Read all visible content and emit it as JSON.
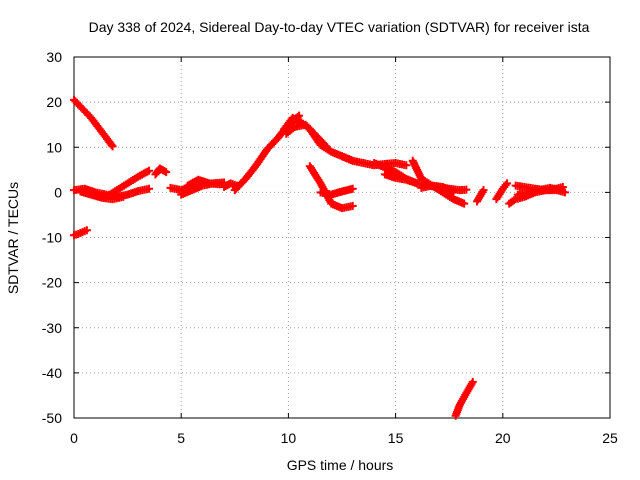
{
  "chart_data": {
    "type": "scatter",
    "title": "Day 338 of 2024, Sidereal Day-to-day VTEC variation (SDTVAR) for receiver ista",
    "xlabel": "GPS time / hours",
    "ylabel": "SDTVAR / TECUs",
    "xlim": [
      0,
      25
    ],
    "ylim": [
      -50,
      30
    ],
    "xticks": [
      0,
      5,
      10,
      15,
      20,
      25
    ],
    "yticks": [
      -50,
      -40,
      -30,
      -20,
      -10,
      0,
      10,
      20,
      30
    ],
    "xtick_labels": [
      "0",
      "5",
      "10",
      "15",
      "20",
      "25"
    ],
    "ytick_labels": [
      "-50",
      "-40",
      "-30",
      "-20",
      "-10",
      "0",
      "10",
      "20",
      "30"
    ],
    "grid": true,
    "marker": "plus",
    "series": [
      {
        "name": "SDTVAR",
        "color": "#ff0000",
        "tracks": [
          {
            "x": [
              0.0,
              0.4,
              0.8,
              1.2,
              1.6,
              1.8
            ],
            "y": [
              20.5,
              18.5,
              16.5,
              14.0,
              11.5,
              10.2
            ]
          },
          {
            "x": [
              0.0,
              0.2,
              0.4,
              0.6
            ],
            "y": [
              -9.5,
              -9.2,
              -8.8,
              -8.4
            ]
          },
          {
            "x": [
              0.0,
              0.5,
              1.0,
              1.5,
              2.0,
              2.5,
              3.0,
              3.5
            ],
            "y": [
              0.5,
              0.8,
              0.0,
              -0.5,
              -1.0,
              -0.5,
              0.3,
              0.8
            ]
          },
          {
            "x": [
              0.3,
              0.8,
              1.3,
              1.8,
              2.3
            ],
            "y": [
              0.2,
              -0.5,
              -1.2,
              -1.5,
              -1.0
            ]
          },
          {
            "x": [
              1.0,
              1.5,
              2.0,
              2.5,
              3.0,
              3.5
            ],
            "y": [
              -0.5,
              -1.0,
              0.5,
              2.0,
              3.5,
              4.8
            ]
          },
          {
            "x": [
              3.8,
              4.0,
              4.3
            ],
            "y": [
              4.0,
              5.3,
              4.5
            ]
          },
          {
            "x": [
              4.5,
              5.0,
              5.5
            ],
            "y": [
              1.0,
              0.5,
              1.2
            ]
          },
          {
            "x": [
              5.0,
              5.5,
              6.0,
              6.5,
              7.0
            ],
            "y": [
              -0.5,
              0.5,
              1.5,
              2.0,
              2.2
            ]
          },
          {
            "x": [
              5.3,
              5.8,
              6.3,
              6.8
            ],
            "y": [
              1.5,
              2.8,
              2.0,
              1.8
            ]
          },
          {
            "x": [
              7.0,
              7.3,
              7.6
            ],
            "y": [
              1.2,
              2.0,
              1.5
            ]
          },
          {
            "x": [
              7.5,
              8.0,
              8.5,
              9.0,
              9.5,
              10.0,
              10.5
            ],
            "y": [
              0.5,
              3.0,
              6.0,
              9.5,
              12.0,
              15.0,
              17.0
            ]
          },
          {
            "x": [
              9.8,
              10.2,
              10.6,
              11.0,
              11.5,
              12.0,
              12.5,
              13.0
            ],
            "y": [
              14.0,
              16.5,
              15.5,
              14.0,
              10.5,
              9.0,
              8.0,
              7.0
            ]
          },
          {
            "x": [
              9.9,
              10.3,
              10.8,
              11.3,
              11.8
            ],
            "y": [
              13.0,
              14.5,
              15.0,
              12.5,
              10.0
            ]
          },
          {
            "x": [
              11.0,
              11.5,
              12.0,
              12.5,
              13.0
            ],
            "y": [
              5.8,
              2.0,
              -2.5,
              -3.5,
              -3.0
            ]
          },
          {
            "x": [
              11.5,
              12.0,
              12.5,
              13.0
            ],
            "y": [
              0.0,
              -0.5,
              0.2,
              0.8
            ]
          },
          {
            "x": [
              12.5,
              13.0,
              13.5,
              14.0,
              14.5,
              15.0,
              15.5
            ],
            "y": [
              8.0,
              7.0,
              6.5,
              6.0,
              6.3,
              6.5,
              6.0
            ]
          },
          {
            "x": [
              14.0,
              14.5,
              15.0,
              15.5,
              16.0,
              16.5,
              17.0,
              17.5,
              18.0,
              18.3
            ],
            "y": [
              6.5,
              5.5,
              4.5,
              3.0,
              2.0,
              1.5,
              1.2,
              0.8,
              0.5,
              0.6
            ]
          },
          {
            "x": [
              14.5,
              15.0,
              15.5,
              16.0
            ],
            "y": [
              4.0,
              3.2,
              2.8,
              2.0
            ]
          },
          {
            "x": [
              15.8,
              16.2,
              16.7,
              17.2,
              17.7,
              18.2
            ],
            "y": [
              7.0,
              3.0,
              1.5,
              0.0,
              -1.5,
              -2.5
            ]
          },
          {
            "x": [
              16.2,
              16.7,
              17.2,
              17.7
            ],
            "y": [
              1.0,
              1.5,
              1.2,
              0.2
            ]
          },
          {
            "x": [
              17.8,
              18.0,
              18.3,
              18.6
            ],
            "y": [
              -49.5,
              -47.0,
              -44.5,
              -42.0
            ]
          },
          {
            "x": [
              18.8,
              19.1
            ],
            "y": [
              -2.0,
              0.5
            ]
          },
          {
            "x": [
              19.7,
              20.0,
              20.2
            ],
            "y": [
              -1.5,
              0.8,
              2.0
            ]
          },
          {
            "x": [
              20.3,
              20.6,
              21.0,
              21.5,
              22.0,
              22.5,
              22.9
            ],
            "y": [
              -2.5,
              -1.5,
              -1.0,
              0.0,
              0.5,
              0.5,
              0.0
            ]
          },
          {
            "x": [
              20.6,
              21.0,
              21.5,
              22.0,
              22.5,
              22.8
            ],
            "y": [
              1.5,
              1.2,
              0.8,
              0.5,
              0.8,
              1.2
            ]
          },
          {
            "x": [
              20.7,
              21.2,
              21.7,
              22.2,
              22.7
            ],
            "y": [
              -0.5,
              0.0,
              0.5,
              1.0,
              0.5
            ]
          }
        ]
      }
    ]
  }
}
